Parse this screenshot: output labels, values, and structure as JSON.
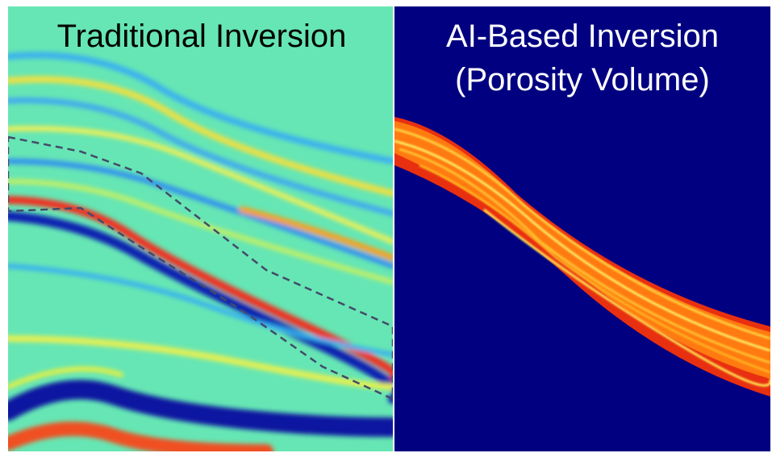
{
  "panels": [
    {
      "title_lines": [
        "Traditional Inversion"
      ]
    },
    {
      "title_lines": [
        "AI-Based Inversion",
        "(Porosity Volume)"
      ]
    }
  ]
}
